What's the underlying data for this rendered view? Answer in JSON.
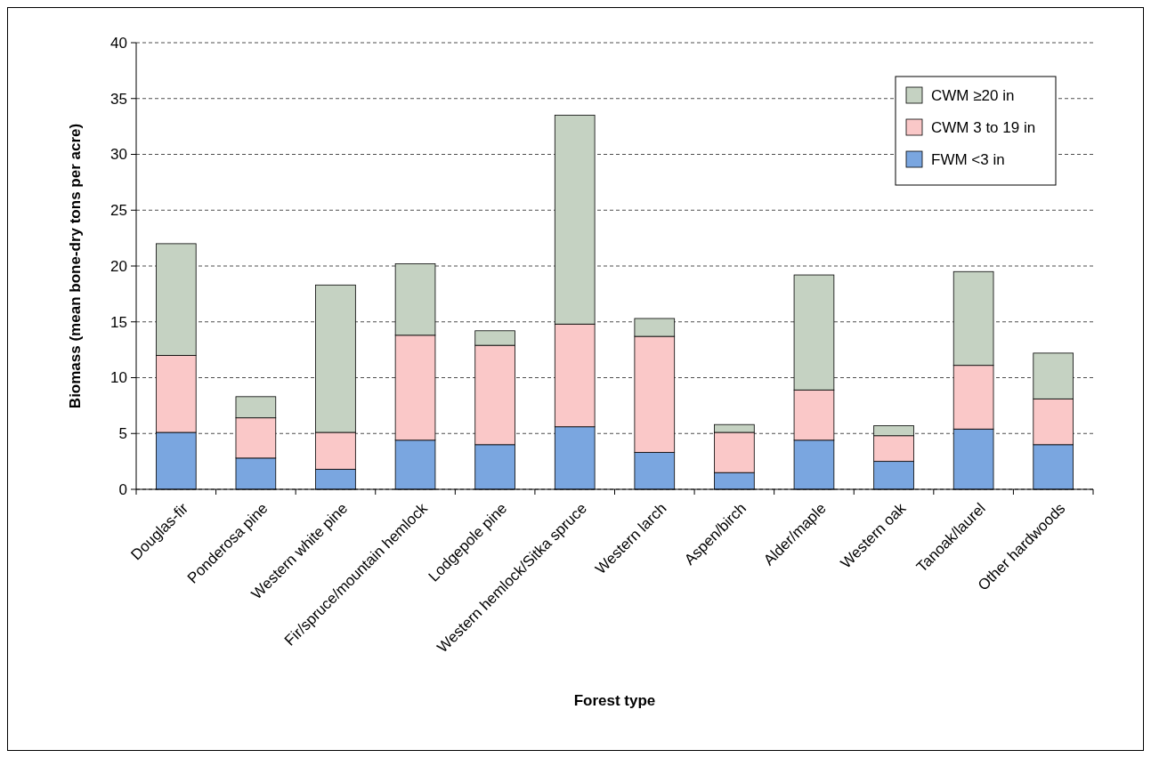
{
  "chart_data": {
    "type": "bar",
    "stacked": true,
    "xlabel": "Forest type",
    "ylabel": "Biomass (mean bone-dry tons per acre)",
    "categories": [
      "Douglas-fir",
      "Ponderosa pine",
      "Western white pine",
      "Fir/spruce/mountain hemlock",
      "Lodgepole pine",
      "Western hemlock/Sitka spruce",
      "Western larch",
      "Aspen/birch",
      "Alder/maple",
      "Western oak",
      "Tanoak/laurel",
      "Other hardwoods"
    ],
    "series": [
      {
        "name": "FWM <3 in",
        "color": "#7aa6e0",
        "values": [
          5.1,
          2.8,
          1.8,
          4.4,
          4.0,
          5.6,
          3.3,
          1.5,
          4.4,
          2.5,
          5.4,
          4.0
        ]
      },
      {
        "name": "CWM 3 to 19 in",
        "color": "#fac8c8",
        "values": [
          6.9,
          3.6,
          3.3,
          9.4,
          8.9,
          9.2,
          10.4,
          3.6,
          4.5,
          2.3,
          5.7,
          4.1
        ]
      },
      {
        "name": "CWM ≥20 in",
        "color": "#c5d2c2",
        "values": [
          10.0,
          1.9,
          13.2,
          6.4,
          1.3,
          18.7,
          1.6,
          0.7,
          10.3,
          0.9,
          8.4,
          4.1
        ]
      }
    ],
    "ylim": [
      0,
      40
    ],
    "yticks": [
      0,
      5,
      10,
      15,
      20,
      25,
      30,
      35,
      40
    ],
    "grid": "y",
    "legend": "top right"
  }
}
